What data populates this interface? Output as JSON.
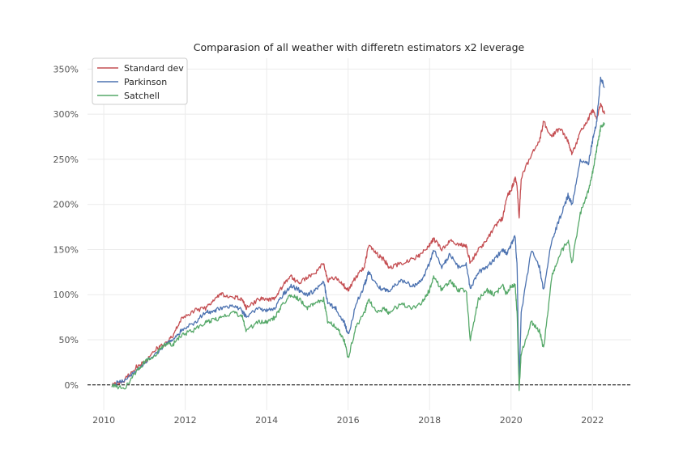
{
  "chart_data": {
    "type": "line",
    "title": "Comparasion of all weather with differetn estimators x2 leverage",
    "xlabel": "",
    "ylabel": "",
    "xlim": [
      2009.6,
      2022.95
    ],
    "ylim": [
      -0.28,
      3.62
    ],
    "x_ticks": [
      2010,
      2012,
      2014,
      2016,
      2018,
      2020,
      2022
    ],
    "x_tick_labels": [
      "2010",
      "2012",
      "2014",
      "2016",
      "2018",
      "2020",
      "2022"
    ],
    "y_ticks": [
      0,
      0.5,
      1,
      1.5,
      2,
      2.5,
      3,
      3.5
    ],
    "y_tick_labels": [
      "0%",
      "50%",
      "100%",
      "150%",
      "200%",
      "250%",
      "300%",
      "350%"
    ],
    "grid": true,
    "legend_position": "top-left",
    "baseline": {
      "y": 0,
      "style": "dashed",
      "color": "#000000"
    },
    "series": [
      {
        "name": "Standard dev",
        "color": "#c44e52",
        "points": [
          [
            2010.2,
            0.0
          ],
          [
            2010.5,
            0.05
          ],
          [
            2010.8,
            0.2
          ],
          [
            2011.0,
            0.25
          ],
          [
            2011.3,
            0.4
          ],
          [
            2011.5,
            0.45
          ],
          [
            2011.7,
            0.55
          ],
          [
            2011.9,
            0.72
          ],
          [
            2012.2,
            0.82
          ],
          [
            2012.5,
            0.85
          ],
          [
            2012.7,
            0.95
          ],
          [
            2012.9,
            1.0
          ],
          [
            2013.2,
            0.97
          ],
          [
            2013.4,
            0.95
          ],
          [
            2013.5,
            0.85
          ],
          [
            2013.8,
            0.95
          ],
          [
            2014.0,
            0.95
          ],
          [
            2014.2,
            0.95
          ],
          [
            2014.4,
            1.1
          ],
          [
            2014.6,
            1.2
          ],
          [
            2014.8,
            1.12
          ],
          [
            2015.0,
            1.2
          ],
          [
            2015.2,
            1.25
          ],
          [
            2015.4,
            1.35
          ],
          [
            2015.5,
            1.15
          ],
          [
            2015.7,
            1.2
          ],
          [
            2015.9,
            1.1
          ],
          [
            2016.0,
            1.05
          ],
          [
            2016.2,
            1.2
          ],
          [
            2016.4,
            1.3
          ],
          [
            2016.5,
            1.55
          ],
          [
            2016.7,
            1.45
          ],
          [
            2016.9,
            1.38
          ],
          [
            2017.0,
            1.3
          ],
          [
            2017.3,
            1.35
          ],
          [
            2017.6,
            1.4
          ],
          [
            2017.8,
            1.45
          ],
          [
            2018.0,
            1.55
          ],
          [
            2018.1,
            1.62
          ],
          [
            2018.3,
            1.5
          ],
          [
            2018.5,
            1.6
          ],
          [
            2018.7,
            1.55
          ],
          [
            2018.9,
            1.55
          ],
          [
            2019.0,
            1.35
          ],
          [
            2019.2,
            1.5
          ],
          [
            2019.4,
            1.6
          ],
          [
            2019.6,
            1.75
          ],
          [
            2019.8,
            1.85
          ],
          [
            2019.9,
            2.1
          ],
          [
            2020.0,
            2.15
          ],
          [
            2020.1,
            2.3
          ],
          [
            2020.15,
            2.2
          ],
          [
            2020.2,
            1.85
          ],
          [
            2020.25,
            2.3
          ],
          [
            2020.5,
            2.55
          ],
          [
            2020.7,
            2.7
          ],
          [
            2020.8,
            2.92
          ],
          [
            2021.0,
            2.75
          ],
          [
            2021.2,
            2.85
          ],
          [
            2021.4,
            2.7
          ],
          [
            2021.5,
            2.55
          ],
          [
            2021.7,
            2.8
          ],
          [
            2021.9,
            2.95
          ],
          [
            2022.0,
            3.05
          ],
          [
            2022.1,
            2.95
          ],
          [
            2022.2,
            3.1
          ],
          [
            2022.3,
            3.0
          ]
        ]
      },
      {
        "name": "Parkinson",
        "color": "#4c72b0",
        "points": [
          [
            2010.2,
            0.0
          ],
          [
            2010.5,
            0.05
          ],
          [
            2010.8,
            0.15
          ],
          [
            2011.0,
            0.25
          ],
          [
            2011.3,
            0.35
          ],
          [
            2011.5,
            0.45
          ],
          [
            2011.7,
            0.5
          ],
          [
            2011.9,
            0.6
          ],
          [
            2012.2,
            0.68
          ],
          [
            2012.5,
            0.8
          ],
          [
            2012.7,
            0.82
          ],
          [
            2012.9,
            0.85
          ],
          [
            2013.2,
            0.88
          ],
          [
            2013.4,
            0.82
          ],
          [
            2013.5,
            0.75
          ],
          [
            2013.8,
            0.85
          ],
          [
            2014.0,
            0.82
          ],
          [
            2014.2,
            0.85
          ],
          [
            2014.4,
            1.0
          ],
          [
            2014.6,
            1.1
          ],
          [
            2014.8,
            1.05
          ],
          [
            2015.0,
            1.0
          ],
          [
            2015.2,
            1.05
          ],
          [
            2015.4,
            1.15
          ],
          [
            2015.5,
            0.9
          ],
          [
            2015.7,
            0.85
          ],
          [
            2015.9,
            0.7
          ],
          [
            2016.0,
            0.55
          ],
          [
            2016.2,
            0.9
          ],
          [
            2016.4,
            1.1
          ],
          [
            2016.5,
            1.25
          ],
          [
            2016.7,
            1.1
          ],
          [
            2016.9,
            1.05
          ],
          [
            2017.0,
            1.05
          ],
          [
            2017.3,
            1.15
          ],
          [
            2017.6,
            1.1
          ],
          [
            2017.8,
            1.15
          ],
          [
            2018.0,
            1.35
          ],
          [
            2018.1,
            1.5
          ],
          [
            2018.3,
            1.3
          ],
          [
            2018.5,
            1.45
          ],
          [
            2018.7,
            1.3
          ],
          [
            2018.9,
            1.35
          ],
          [
            2019.0,
            1.05
          ],
          [
            2019.2,
            1.25
          ],
          [
            2019.4,
            1.3
          ],
          [
            2019.6,
            1.4
          ],
          [
            2019.8,
            1.5
          ],
          [
            2019.9,
            1.45
          ],
          [
            2020.0,
            1.55
          ],
          [
            2020.1,
            1.65
          ],
          [
            2020.15,
            1.3
          ],
          [
            2020.2,
            0.0
          ],
          [
            2020.25,
            0.8
          ],
          [
            2020.5,
            1.5
          ],
          [
            2020.7,
            1.3
          ],
          [
            2020.8,
            1.05
          ],
          [
            2021.0,
            1.6
          ],
          [
            2021.2,
            1.85
          ],
          [
            2021.4,
            2.1
          ],
          [
            2021.5,
            2.0
          ],
          [
            2021.7,
            2.5
          ],
          [
            2021.9,
            2.45
          ],
          [
            2022.0,
            2.7
          ],
          [
            2022.1,
            2.9
          ],
          [
            2022.2,
            3.4
          ],
          [
            2022.3,
            3.3
          ]
        ]
      },
      {
        "name": "Satchell",
        "color": "#55a868",
        "points": [
          [
            2010.2,
            0.0
          ],
          [
            2010.5,
            -0.05
          ],
          [
            2010.8,
            0.15
          ],
          [
            2011.0,
            0.25
          ],
          [
            2011.3,
            0.35
          ],
          [
            2011.5,
            0.45
          ],
          [
            2011.7,
            0.45
          ],
          [
            2011.9,
            0.55
          ],
          [
            2012.2,
            0.6
          ],
          [
            2012.5,
            0.7
          ],
          [
            2012.7,
            0.72
          ],
          [
            2012.9,
            0.75
          ],
          [
            2013.2,
            0.8
          ],
          [
            2013.4,
            0.75
          ],
          [
            2013.5,
            0.6
          ],
          [
            2013.8,
            0.7
          ],
          [
            2014.0,
            0.7
          ],
          [
            2014.2,
            0.75
          ],
          [
            2014.4,
            0.9
          ],
          [
            2014.6,
            1.0
          ],
          [
            2014.8,
            0.95
          ],
          [
            2015.0,
            0.85
          ],
          [
            2015.2,
            0.9
          ],
          [
            2015.4,
            0.95
          ],
          [
            2015.5,
            0.7
          ],
          [
            2015.7,
            0.65
          ],
          [
            2015.9,
            0.5
          ],
          [
            2016.0,
            0.3
          ],
          [
            2016.2,
            0.65
          ],
          [
            2016.4,
            0.8
          ],
          [
            2016.5,
            0.95
          ],
          [
            2016.7,
            0.8
          ],
          [
            2016.9,
            0.85
          ],
          [
            2017.0,
            0.8
          ],
          [
            2017.3,
            0.9
          ],
          [
            2017.6,
            0.85
          ],
          [
            2017.8,
            0.9
          ],
          [
            2018.0,
            1.05
          ],
          [
            2018.1,
            1.2
          ],
          [
            2018.3,
            1.05
          ],
          [
            2018.5,
            1.15
          ],
          [
            2018.7,
            1.05
          ],
          [
            2018.9,
            1.05
          ],
          [
            2019.0,
            0.5
          ],
          [
            2019.2,
            0.95
          ],
          [
            2019.4,
            1.05
          ],
          [
            2019.6,
            1.0
          ],
          [
            2019.8,
            1.1
          ],
          [
            2019.9,
            1.0
          ],
          [
            2020.0,
            1.1
          ],
          [
            2020.1,
            1.1
          ],
          [
            2020.15,
            0.8
          ],
          [
            2020.2,
            -0.05
          ],
          [
            2020.25,
            0.35
          ],
          [
            2020.5,
            0.7
          ],
          [
            2020.7,
            0.6
          ],
          [
            2020.8,
            0.4
          ],
          [
            2021.0,
            1.2
          ],
          [
            2021.2,
            1.45
          ],
          [
            2021.4,
            1.6
          ],
          [
            2021.5,
            1.35
          ],
          [
            2021.7,
            1.9
          ],
          [
            2021.9,
            2.15
          ],
          [
            2022.0,
            2.35
          ],
          [
            2022.1,
            2.6
          ],
          [
            2022.2,
            2.85
          ],
          [
            2022.3,
            2.9
          ]
        ]
      }
    ]
  }
}
